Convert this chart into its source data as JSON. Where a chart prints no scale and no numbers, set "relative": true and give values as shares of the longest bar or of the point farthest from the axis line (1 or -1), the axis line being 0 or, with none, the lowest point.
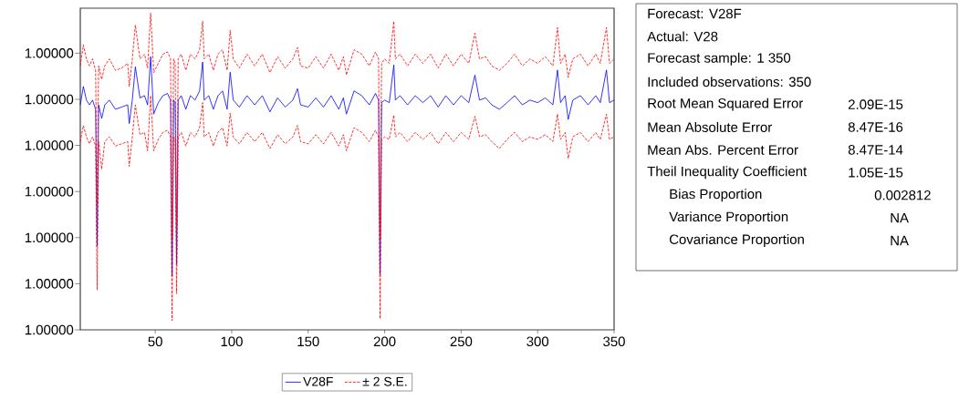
{
  "chart_data": [
    {
      "type": "line",
      "legend": "bottom",
      "relative": true,
      "x": [
        1,
        3,
        5,
        7,
        9,
        11,
        12,
        13,
        15,
        17,
        20,
        24,
        28,
        32,
        33,
        35,
        37,
        40,
        43,
        45,
        47,
        49,
        52,
        55,
        58,
        60,
        61,
        62,
        63,
        64,
        65,
        67,
        70,
        73,
        76,
        79,
        81,
        82,
        85,
        88,
        91,
        94,
        97,
        99,
        101,
        105,
        110,
        115,
        120,
        125,
        130,
        135,
        140,
        143,
        145,
        150,
        155,
        160,
        165,
        170,
        173,
        175,
        180,
        185,
        190,
        194,
        196,
        197,
        198,
        200,
        203,
        206,
        207,
        210,
        215,
        220,
        225,
        230,
        235,
        240,
        245,
        250,
        255,
        259,
        262,
        266,
        270,
        275,
        280,
        285,
        290,
        295,
        300,
        305,
        310,
        313,
        315,
        318,
        320,
        323,
        328,
        333,
        338,
        341,
        345,
        347,
        350
      ],
      "xlim": [
        1,
        350
      ],
      "xticks": [
        50,
        100,
        150,
        200,
        250,
        300,
        350
      ],
      "annotations": [
        "1.00000",
        "1.00000",
        "1.00000",
        "1.00000",
        "1.00000",
        "1.00000",
        "1.00000"
      ],
      "series": [
        {
          "name": "V28F",
          "color": "#0000ff",
          "line_style": "solid",
          "values": [
            0.71,
            0.768,
            0.725,
            0.71,
            0.725,
            0.696,
            0.264,
            0.71,
            0.667,
            0.71,
            0.725,
            0.696,
            0.703,
            0.71,
            0.651,
            0.725,
            0.83,
            0.732,
            0.739,
            0.71,
            0.862,
            0.681,
            0.717,
            0.739,
            0.746,
            0.725,
            0.17,
            0.725,
            0.717,
            0.206,
            0.725,
            0.739,
            0.696,
            0.739,
            0.725,
            0.754,
            0.845,
            0.725,
            0.739,
            0.696,
            0.739,
            0.754,
            0.696,
            0.813,
            0.725,
            0.703,
            0.739,
            0.71,
            0.739,
            0.688,
            0.732,
            0.703,
            0.725,
            0.761,
            0.71,
            0.703,
            0.732,
            0.703,
            0.739,
            0.696,
            0.732,
            0.681,
            0.754,
            0.739,
            0.71,
            0.746,
            0.725,
            0.174,
            0.717,
            0.725,
            0.717,
            0.836,
            0.725,
            0.739,
            0.71,
            0.739,
            0.717,
            0.739,
            0.703,
            0.739,
            0.71,
            0.739,
            0.717,
            0.804,
            0.725,
            0.732,
            0.71,
            0.696,
            0.717,
            0.739,
            0.71,
            0.725,
            0.717,
            0.732,
            0.71,
            0.82,
            0.717,
            0.739,
            0.664,
            0.725,
            0.739,
            0.71,
            0.739,
            0.717,
            0.82,
            0.717,
            0.725
          ]
        },
        {
          "name": "± 2 S.E.",
          "color": "#ff0000",
          "line_style": "dashed",
          "values": [
            0.833,
            0.899,
            0.855,
            0.833,
            0.855,
            0.819,
            0.391,
            0.833,
            0.79,
            0.833,
            0.855,
            0.819,
            0.826,
            0.841,
            0.768,
            0.855,
            0.962,
            0.855,
            0.87,
            0.826,
            1,
            0.812,
            0.841,
            0.87,
            0.877,
            0.855,
            0.29,
            0.855,
            0.841,
            0.326,
            0.855,
            0.87,
            0.819,
            0.87,
            0.855,
            0.884,
            0.974,
            0.855,
            0.87,
            0.819,
            0.87,
            0.884,
            0.819,
            0.945,
            0.855,
            0.826,
            0.87,
            0.833,
            0.87,
            0.812,
            0.862,
            0.826,
            0.855,
            0.891,
            0.833,
            0.826,
            0.862,
            0.826,
            0.87,
            0.819,
            0.862,
            0.804,
            0.884,
            0.87,
            0.833,
            0.877,
            0.855,
            0.29,
            0.841,
            0.855,
            0.841,
            0.974,
            0.855,
            0.87,
            0.833,
            0.87,
            0.841,
            0.87,
            0.826,
            0.87,
            0.833,
            0.87,
            0.841,
            0.936,
            0.855,
            0.862,
            0.833,
            0.819,
            0.841,
            0.87,
            0.833,
            0.855,
            0.841,
            0.862,
            0.833,
            0.954,
            0.841,
            0.87,
            0.797,
            0.855,
            0.87,
            0.833,
            0.87,
            0.841,
            0.954,
            0.841,
            0.855
          ]
        },
        {
          "color": "#ff0000",
          "line_style": "dashed",
          "values": [
            0.594,
            0.645,
            0.609,
            0.587,
            0.609,
            0.58,
            0.126,
            0.594,
            0.507,
            0.594,
            0.609,
            0.58,
            0.587,
            0.594,
            0.516,
            0.609,
            0.71,
            0.616,
            0.623,
            0.565,
            0.739,
            0.565,
            0.601,
            0.623,
            0.63,
            0.609,
            0.029,
            0.609,
            0.601,
            0.114,
            0.609,
            0.623,
            0.58,
            0.623,
            0.609,
            0.638,
            0.717,
            0.609,
            0.623,
            0.58,
            0.623,
            0.638,
            0.58,
            0.684,
            0.609,
            0.587,
            0.623,
            0.594,
            0.623,
            0.572,
            0.616,
            0.587,
            0.609,
            0.645,
            0.594,
            0.587,
            0.616,
            0.587,
            0.623,
            0.58,
            0.616,
            0.565,
            0.638,
            0.623,
            0.594,
            0.63,
            0.609,
            0.035,
            0.601,
            0.609,
            0.601,
            0.678,
            0.609,
            0.623,
            0.594,
            0.623,
            0.601,
            0.623,
            0.587,
            0.623,
            0.594,
            0.623,
            0.601,
            0.674,
            0.609,
            0.616,
            0.594,
            0.572,
            0.601,
            0.623,
            0.594,
            0.609,
            0.601,
            0.616,
            0.594,
            0.681,
            0.601,
            0.623,
            0.541,
            0.609,
            0.623,
            0.594,
            0.623,
            0.601,
            0.681,
            0.601,
            0.609
          ]
        }
      ]
    },
    {
      "type": "other",
      "annotations": [
        "Forecast: V28F",
        "Actual: V28",
        "Forecast sample: 1 350",
        "Included observations: 350",
        "Root Mean Squared Error",
        "2.09E-15",
        "Mean Absolute Error",
        "8.47E-16",
        "Mean Abs. Percent Error",
        "8.47E-14",
        "Theil Inequality Coefficient",
        "1.05E-15",
        "Bias Proportion",
        "0.002812",
        "Variance Proportion",
        "NA",
        "Covariance Proportion",
        "NA"
      ]
    }
  ]
}
